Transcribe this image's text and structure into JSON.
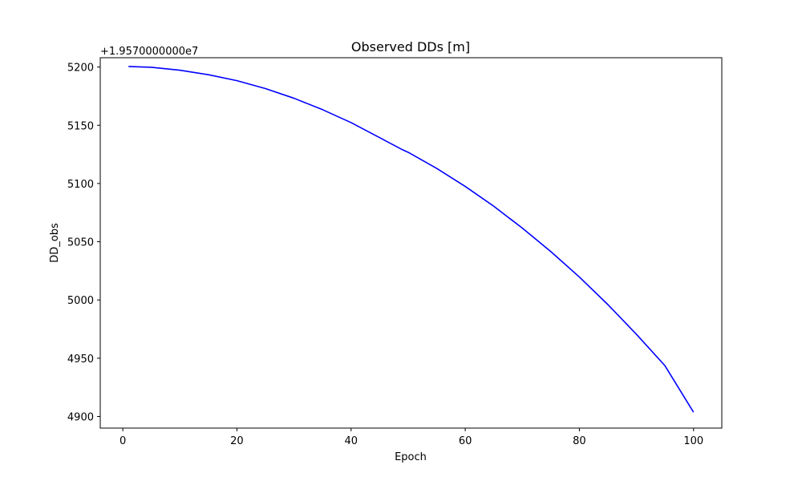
{
  "chart_data": {
    "type": "line",
    "title": "Observed DDs [m]",
    "xlabel": "Epoch",
    "ylabel": "DD_obs",
    "offset_label": "+1.9570000000e7",
    "xlim": [
      -3.95,
      104.95
    ],
    "ylim": [
      4890,
      5208
    ],
    "xticks": [
      0,
      20,
      40,
      60,
      80,
      100
    ],
    "yticks": [
      4900,
      4950,
      5000,
      5050,
      5100,
      5150,
      5200
    ],
    "grid": false,
    "series": [
      {
        "color": "#0000ff",
        "x": [
          1,
          5,
          10,
          15,
          20,
          25,
          30,
          35,
          40,
          45,
          49,
          50,
          55,
          60,
          65,
          70,
          75,
          80,
          85,
          90,
          95,
          100
        ],
        "y": [
          5200.5,
          5199.8,
          5197.3,
          5193.4,
          5188.3,
          5181.5,
          5173.2,
          5163.4,
          5152.3,
          5139.4,
          5129.0,
          5126.8,
          5113.0,
          5097.5,
          5080.5,
          5061.7,
          5041.5,
          5019.7,
          4996.0,
          4970.5,
          4943.5,
          4903.6
        ]
      }
    ]
  }
}
